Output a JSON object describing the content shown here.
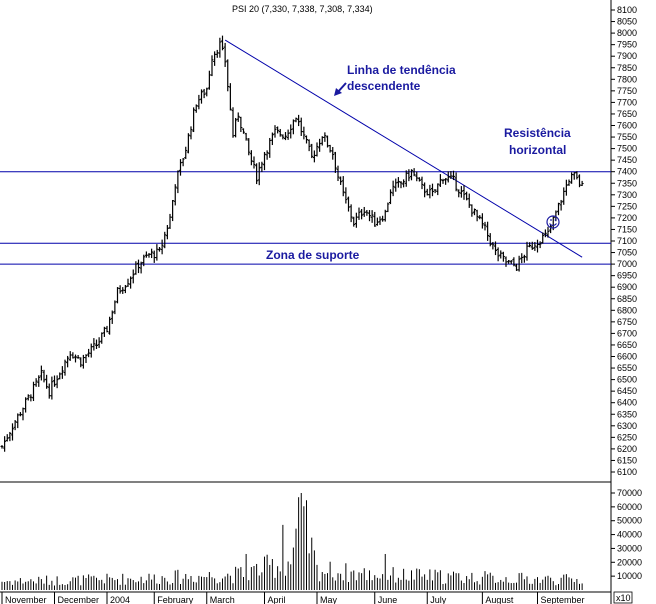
{
  "chart_data": {
    "type": "ohlc",
    "title": "PSI 20 (7,330, 7,338, 7,308, 7,334)",
    "ylim": [
      6100,
      8100
    ],
    "y_ticks": [
      8100,
      8050,
      8000,
      7950,
      7900,
      7850,
      7800,
      7750,
      7700,
      7650,
      7600,
      7550,
      7500,
      7450,
      7400,
      7350,
      7300,
      7250,
      7200,
      7150,
      7100,
      7050,
      7000,
      6950,
      6900,
      6850,
      6800,
      6750,
      6700,
      6650,
      6600,
      6550,
      6500,
      6450,
      6400,
      6350,
      6300,
      6250,
      6200,
      6150,
      6100
    ],
    "volume_ylim": [
      0,
      70000
    ],
    "volume_ticks": [
      70000,
      60000,
      50000,
      40000,
      30000,
      20000,
      10000
    ],
    "volume_unit_label": "x10",
    "x_labels": [
      "November",
      "December",
      "2004",
      "February",
      "March",
      "April",
      "May",
      "June",
      "July",
      "August",
      "September"
    ],
    "x_label_sessions": [
      0,
      20,
      40,
      58,
      78,
      100,
      120,
      142,
      162,
      183,
      204
    ],
    "total_sessions": 225,
    "anchors": [
      [
        0,
        6210
      ],
      [
        4,
        6300
      ],
      [
        10,
        6420
      ],
      [
        15,
        6520
      ],
      [
        18,
        6450
      ],
      [
        26,
        6620
      ],
      [
        30,
        6580
      ],
      [
        36,
        6650
      ],
      [
        40,
        6720
      ],
      [
        44,
        6880
      ],
      [
        48,
        6930
      ],
      [
        52,
        7000
      ],
      [
        56,
        7040
      ],
      [
        60,
        7050
      ],
      [
        64,
        7200
      ],
      [
        66,
        7350
      ],
      [
        70,
        7500
      ],
      [
        74,
        7700
      ],
      [
        78,
        7760
      ],
      [
        80,
        7900
      ],
      [
        83,
        7950
      ],
      [
        85,
        7880
      ],
      [
        88,
        7560
      ],
      [
        90,
        7650
      ],
      [
        94,
        7480
      ],
      [
        97,
        7380
      ],
      [
        100,
        7480
      ],
      [
        104,
        7570
      ],
      [
        108,
        7560
      ],
      [
        112,
        7640
      ],
      [
        114,
        7580
      ],
      [
        118,
        7460
      ],
      [
        122,
        7560
      ],
      [
        126,
        7480
      ],
      [
        128,
        7380
      ],
      [
        130,
        7300
      ],
      [
        134,
        7180
      ],
      [
        138,
        7240
      ],
      [
        142,
        7180
      ],
      [
        146,
        7220
      ],
      [
        148,
        7320
      ],
      [
        152,
        7350
      ],
      [
        156,
        7400
      ],
      [
        160,
        7330
      ],
      [
        164,
        7300
      ],
      [
        168,
        7380
      ],
      [
        172,
        7360
      ],
      [
        176,
        7290
      ],
      [
        180,
        7220
      ],
      [
        184,
        7150
      ],
      [
        188,
        7050
      ],
      [
        192,
        7010
      ],
      [
        196,
        6990
      ],
      [
        200,
        7060
      ],
      [
        204,
        7100
      ],
      [
        208,
        7130
      ],
      [
        212,
        7250
      ],
      [
        216,
        7370
      ],
      [
        218,
        7380
      ],
      [
        221,
        7334
      ]
    ],
    "volume_anchors": [
      [
        0,
        8000
      ],
      [
        30,
        9000
      ],
      [
        60,
        11000
      ],
      [
        90,
        14000
      ],
      [
        110,
        26000
      ],
      [
        114,
        70000
      ],
      [
        120,
        18000
      ],
      [
        140,
        14000
      ],
      [
        170,
        12000
      ],
      [
        200,
        10000
      ],
      [
        222,
        9000
      ]
    ],
    "horizontal_lines": [
      7400,
      7090,
      7000
    ],
    "trendline": [
      [
        85,
        7970
      ],
      [
        221,
        7030
      ]
    ],
    "annotations": {
      "trend_label_1": "Linha de tendência",
      "trend_label_2": "descendente",
      "resist_label_1": "Resistência",
      "resist_label_2": "horizontal",
      "support_label": "Zona de suporte"
    },
    "colors": {
      "bars": "#000000",
      "annotation": "#1a1aa0",
      "lines": "#0000aa"
    }
  }
}
